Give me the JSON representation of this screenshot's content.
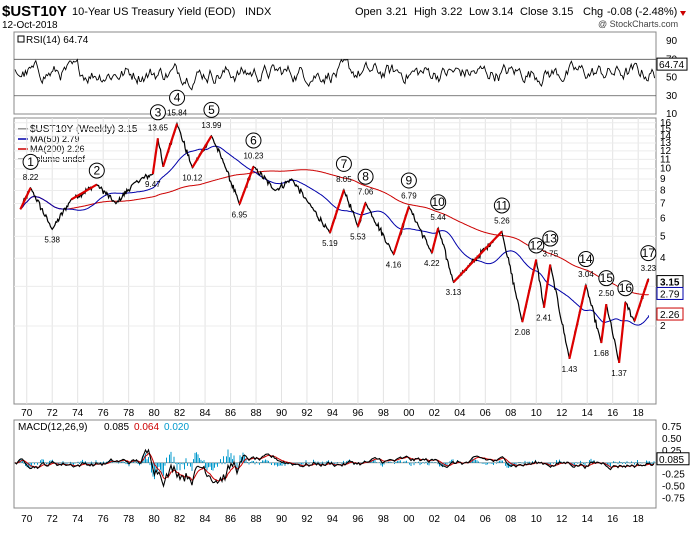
{
  "header": {
    "symbol": "$UST10Y",
    "description": "10-Year US Treasury Yield (EOD)",
    "exchange": "INDX",
    "date": "12-Oct-2018",
    "stats": {
      "open_label": "Open",
      "open": "3.21",
      "high_label": "High",
      "high": "3.22",
      "low_label": "Low",
      "low": "3.14",
      "close_label": "Close",
      "close": "3.15",
      "chg_label": "Chg",
      "chg": "-0.08 (-2.48%)"
    },
    "watermark": "@ StockCharts.com"
  },
  "colors": {
    "price": "#000000",
    "ma50": "#0000aa",
    "ma200": "#cc0000",
    "wave": "#dd0000",
    "macd": "#000000",
    "signal": "#cc0000",
    "hist": "#0099cc"
  },
  "chart_data": [
    {
      "type": "line",
      "panel": "rsi",
      "legend": "RSI(14) 64.74",
      "current": "64.74",
      "ylim": [
        10,
        100
      ],
      "y_ticks": [
        "90",
        "70",
        "50",
        "30",
        "10"
      ],
      "reference_lines": [
        70,
        30
      ]
    },
    {
      "type": "line",
      "panel": "price",
      "scale": "log",
      "legend": [
        {
          "name": "$UST10Y (Weekly) 3.15",
          "color": "#000000"
        },
        {
          "name": "MA(50) 2.79",
          "color": "#0000aa"
        },
        {
          "name": "MA(200) 2.26",
          "color": "#cc0000"
        },
        {
          "name": "Volume undef",
          "color": "#888888"
        }
      ],
      "ylim": [
        0.9,
        16.8
      ],
      "y_ticks": [
        "16",
        "15",
        "14",
        "13",
        "12",
        "11",
        "10",
        "9",
        "8",
        "7",
        "6",
        "5",
        "4",
        "3",
        "2"
      ],
      "x_ticks": [
        "70",
        "72",
        "74",
        "76",
        "78",
        "80",
        "82",
        "84",
        "86",
        "88",
        "90",
        "92",
        "94",
        "96",
        "98",
        "00",
        "02",
        "04",
        "06",
        "08",
        "10",
        "12",
        "14",
        "16",
        "18"
      ],
      "x_range": [
        1969.0,
        2019.4
      ],
      "y_tags": [
        "3.15",
        "2.79",
        "2.26"
      ],
      "points": [
        {
          "x": 1969.5,
          "y": 6.6,
          "label": ""
        },
        {
          "x": 1970.3,
          "y": 8.22,
          "label": "8.22",
          "wave": "1"
        },
        {
          "x": 1972.0,
          "y": 5.38,
          "label": "5.38"
        },
        {
          "x": 1973.5,
          "y": 7.3,
          "label": ""
        },
        {
          "x": 1975.5,
          "y": 8.5,
          "label": "",
          "wave": "2"
        },
        {
          "x": 1977.0,
          "y": 7.0,
          "label": ""
        },
        {
          "x": 1978.5,
          "y": 8.7,
          "label": ""
        },
        {
          "x": 1979.9,
          "y": 9.47,
          "label": "9.47"
        },
        {
          "x": 1980.3,
          "y": 13.65,
          "label": "13.65",
          "wave": "3"
        },
        {
          "x": 1980.7,
          "y": 10.2,
          "label": ""
        },
        {
          "x": 1981.8,
          "y": 15.84,
          "label": "15.84",
          "wave": "4"
        },
        {
          "x": 1983.0,
          "y": 10.12,
          "label": "10.12"
        },
        {
          "x": 1984.5,
          "y": 13.99,
          "label": "13.99",
          "wave": "5"
        },
        {
          "x": 1985.5,
          "y": 10.5,
          "label": ""
        },
        {
          "x": 1986.7,
          "y": 6.95,
          "label": "6.95"
        },
        {
          "x": 1987.8,
          "y": 10.23,
          "label": "10.23",
          "wave": "6"
        },
        {
          "x": 1989.5,
          "y": 8.0,
          "label": ""
        },
        {
          "x": 1990.8,
          "y": 9.0,
          "label": ""
        },
        {
          "x": 1992.0,
          "y": 7.2,
          "label": ""
        },
        {
          "x": 1993.8,
          "y": 5.19,
          "label": "5.19"
        },
        {
          "x": 1994.9,
          "y": 8.05,
          "label": "8.05",
          "wave": "7"
        },
        {
          "x": 1996.0,
          "y": 5.53,
          "label": "5.53"
        },
        {
          "x": 1996.6,
          "y": 7.06,
          "label": "7.06",
          "wave": "8"
        },
        {
          "x": 1998.8,
          "y": 4.16,
          "label": "4.16"
        },
        {
          "x": 2000.0,
          "y": 6.79,
          "label": "6.79",
          "wave": "9"
        },
        {
          "x": 2001.8,
          "y": 4.22,
          "label": "4.22"
        },
        {
          "x": 2002.3,
          "y": 5.44,
          "label": "5.44",
          "wave": "10"
        },
        {
          "x": 2003.5,
          "y": 3.13,
          "label": "3.13"
        },
        {
          "x": 2007.3,
          "y": 5.26,
          "label": "5.26",
          "wave": "11"
        },
        {
          "x": 2008.9,
          "y": 2.08,
          "label": "2.08"
        },
        {
          "x": 2010.0,
          "y": 3.95,
          "label": "",
          "wave": "12"
        },
        {
          "x": 2010.6,
          "y": 2.41,
          "label": "2.41"
        },
        {
          "x": 2011.1,
          "y": 3.75,
          "label": "3.75",
          "wave": "13"
        },
        {
          "x": 2012.6,
          "y": 1.43,
          "label": "1.43"
        },
        {
          "x": 2013.9,
          "y": 3.04,
          "label": "3.04",
          "wave": "14"
        },
        {
          "x": 2015.1,
          "y": 1.68,
          "label": "1.68"
        },
        {
          "x": 2015.5,
          "y": 2.5,
          "label": "2.50",
          "wave": "15"
        },
        {
          "x": 2016.5,
          "y": 1.37,
          "label": "1.37"
        },
        {
          "x": 2017.0,
          "y": 2.55,
          "label": "",
          "wave": "16"
        },
        {
          "x": 2017.7,
          "y": 2.1,
          "label": ""
        },
        {
          "x": 2018.8,
          "y": 3.23,
          "label": "3.23",
          "wave": "17"
        },
        {
          "x": 2018.8,
          "y": 3.15,
          "label": ""
        }
      ]
    },
    {
      "type": "line",
      "panel": "macd",
      "legend": "MACD(12,26,9) 0.085, 0.064, 0.020",
      "legend_parts": {
        "name": "MACD(12,26,9)",
        "macd": "0.085",
        "signal": "0.064",
        "hist": "0.020"
      },
      "current": "0.085",
      "ylim": [
        -0.95,
        0.9
      ],
      "y_ticks": [
        "0.75",
        "0.50",
        "0.25",
        "-0.25",
        "-0.50",
        "-0.75"
      ]
    }
  ]
}
